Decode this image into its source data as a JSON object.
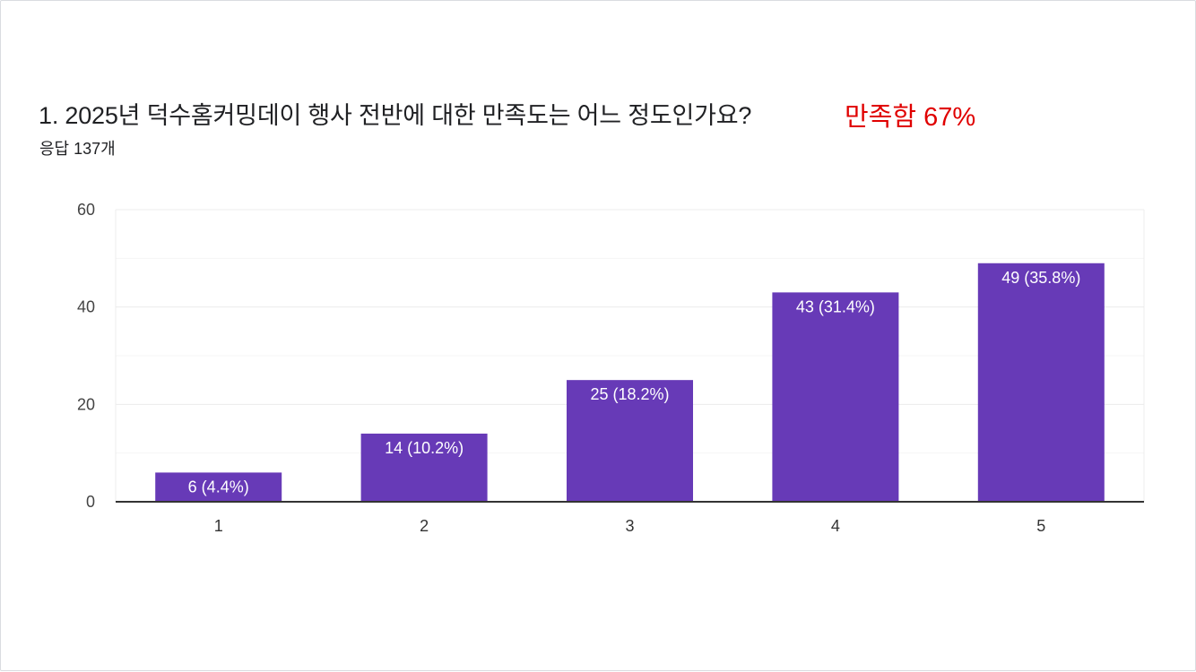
{
  "question": {
    "title": "1. 2025년 덕수홈커밍데이 행사 전반에 대한 만족도는 어느 정도인가요?",
    "annotation": "만족함 67%",
    "response_count": "응답 137개"
  },
  "colors": {
    "bar": "#673ab7",
    "bar_label": "#ffffff",
    "annotation": "#e00000",
    "grid": "#ececec",
    "axis": "#333333",
    "text": "#202124"
  },
  "chart_data": {
    "type": "bar",
    "categories": [
      "1",
      "2",
      "3",
      "4",
      "5"
    ],
    "values": [
      6,
      14,
      25,
      43,
      49
    ],
    "data_labels": [
      "6 (4.4%)",
      "14 (10.2%)",
      "25 (18.2%)",
      "43 (31.4%)",
      "49 (35.8%)"
    ],
    "ylim": [
      0,
      60
    ],
    "yticks": [
      0,
      20,
      40,
      60
    ],
    "minor_gridlines": [
      10,
      30,
      50
    ],
    "grid": true,
    "legend": "none",
    "title": "",
    "xlabel": "",
    "ylabel": ""
  }
}
